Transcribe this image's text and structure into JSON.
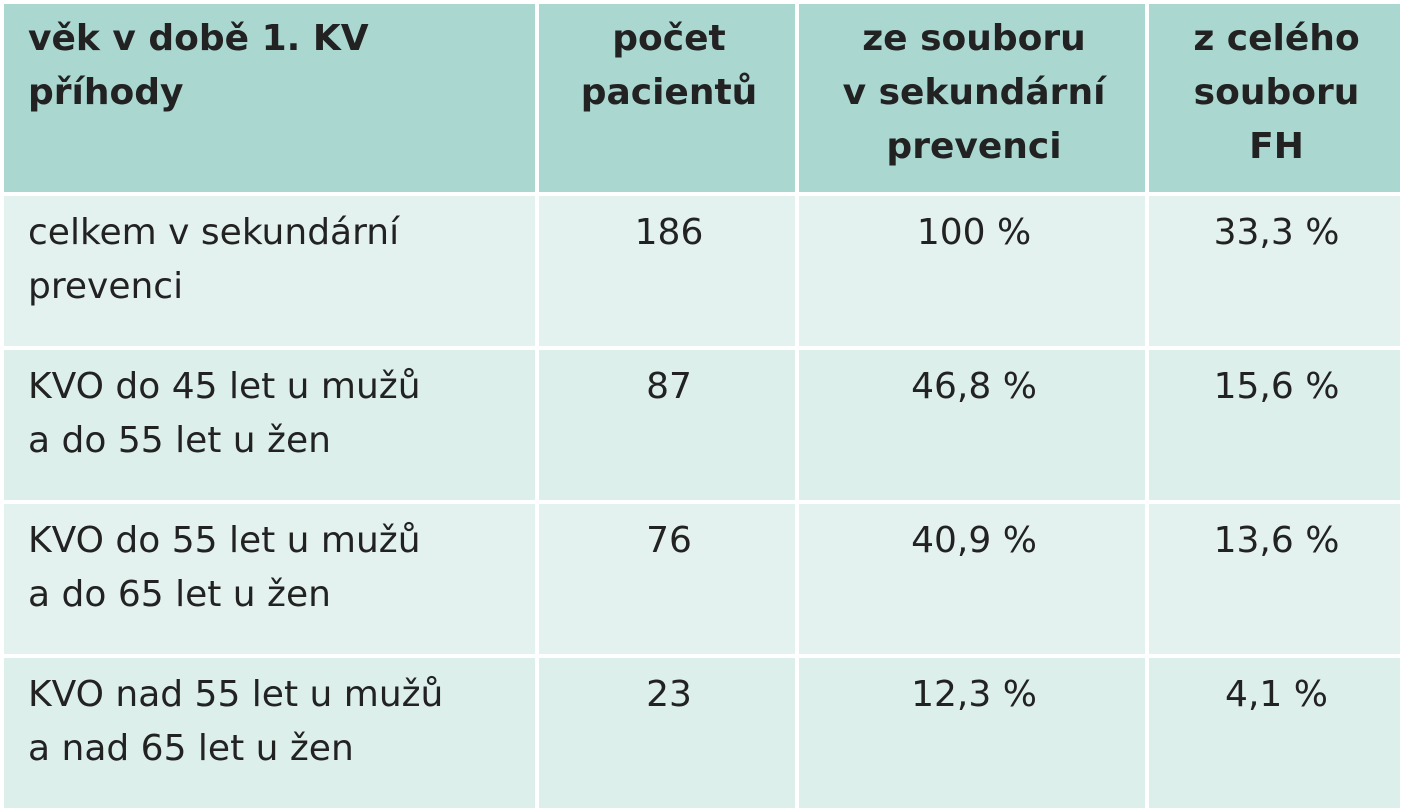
{
  "table": {
    "header": [
      "věk v době 1. KV\npříhody",
      "počet\npacientů",
      "ze souboru\nv sekundární\nprevenci",
      "z celého\nsouboru\nFH"
    ],
    "rows": [
      [
        "celkem v sekundární\nprevenci",
        "186",
        "100 %",
        "33,3 %"
      ],
      [
        "KVO do 45 let u mužů\na do 55 let u žen",
        "87",
        "46,8 %",
        "15,6 %"
      ],
      [
        "KVO do 55 let u mužů\na do 65 let u žen",
        "76",
        "40,9 %",
        "13,6 %"
      ],
      [
        "KVO nad 55 let u mužů\na nad 65 let u žen",
        "23",
        "12,3 %",
        "4,1 %"
      ]
    ]
  }
}
